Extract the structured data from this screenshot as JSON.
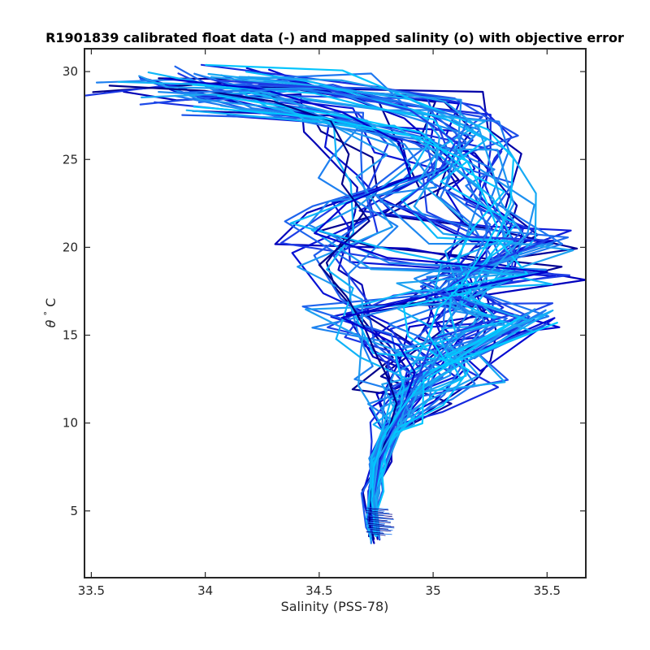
{
  "chart_data": {
    "type": "line",
    "title": "R1901839 calibrated float data (-) and mapped salinity (o) with objective error",
    "xlabel": "Salinity (PSS-78)",
    "ylabel_symbol": "θ",
    "ylabel_unit": "C",
    "xlim": [
      33.47,
      35.67
    ],
    "ylim": [
      1.2,
      31.3
    ],
    "xticks": [
      33.5,
      34,
      34.5,
      35,
      35.5
    ],
    "xtick_labels": [
      "33.5",
      "34",
      "34.5",
      "35",
      "35.5"
    ],
    "yticks": [
      5,
      10,
      15,
      20,
      25,
      30
    ],
    "ytick_labels": [
      "5",
      "10",
      "15",
      "20",
      "25",
      "30"
    ],
    "grid": false,
    "legend": "none",
    "colormap": [
      "#00008B",
      "#0000CD",
      "#1E3CE6",
      "#1E78F0",
      "#1EA0F0",
      "#00C8FF"
    ],
    "series": [
      {
        "color": "#00008B",
        "values": [
          [
            33.58,
            29.2
          ],
          [
            34.0,
            28.9
          ],
          [
            34.3,
            28.3
          ],
          [
            34.55,
            27.2
          ],
          [
            34.63,
            25.3
          ],
          [
            34.6,
            23.6
          ],
          [
            34.72,
            21.5
          ],
          [
            34.5,
            19.0
          ],
          [
            34.62,
            17.2
          ],
          [
            34.7,
            15.4
          ],
          [
            34.75,
            13.9
          ],
          [
            34.8,
            12.6
          ],
          [
            34.84,
            11.1
          ],
          [
            34.8,
            9.4
          ],
          [
            34.76,
            7.7
          ],
          [
            34.73,
            6.1
          ],
          [
            34.72,
            4.3
          ],
          [
            34.74,
            3.4
          ]
        ]
      },
      {
        "color": "#0000CD",
        "values": [
          [
            33.82,
            29.6
          ],
          [
            34.25,
            29.0
          ],
          [
            34.6,
            27.7
          ],
          [
            34.85,
            26.0
          ],
          [
            34.9,
            24.0
          ],
          [
            34.62,
            22.5
          ],
          [
            34.48,
            20.8
          ],
          [
            34.8,
            19.4
          ],
          [
            35.5,
            18.6
          ],
          [
            35.0,
            17.3
          ],
          [
            34.6,
            16.0
          ],
          [
            34.85,
            14.4
          ],
          [
            34.92,
            12.9
          ],
          [
            34.88,
            11.3
          ],
          [
            34.82,
            9.7
          ],
          [
            34.77,
            8.0
          ],
          [
            34.73,
            5.9
          ],
          [
            34.73,
            3.9
          ]
        ]
      },
      {
        "color": "#1E3CE6",
        "values": [
          [
            34.05,
            29.5
          ],
          [
            34.5,
            29.1
          ],
          [
            34.9,
            27.8
          ],
          [
            35.1,
            26.0
          ],
          [
            35.02,
            24.2
          ],
          [
            34.85,
            22.4
          ],
          [
            35.15,
            20.6
          ],
          [
            35.5,
            20.4
          ],
          [
            35.2,
            18.8
          ],
          [
            35.02,
            17.4
          ],
          [
            35.35,
            16.2
          ],
          [
            35.0,
            14.8
          ],
          [
            34.95,
            13.1
          ],
          [
            34.9,
            11.6
          ],
          [
            34.83,
            9.8
          ],
          [
            34.77,
            7.9
          ],
          [
            34.74,
            5.8
          ],
          [
            34.73,
            3.8
          ]
        ]
      },
      {
        "color": "#1E78F0",
        "values": [
          [
            33.88,
            28.8
          ],
          [
            34.4,
            29.0
          ],
          [
            34.85,
            28.3
          ],
          [
            35.15,
            27.3
          ],
          [
            35.1,
            25.5
          ],
          [
            35.05,
            23.3
          ],
          [
            35.25,
            21.3
          ],
          [
            35.18,
            19.2
          ],
          [
            35.05,
            17.6
          ],
          [
            35.15,
            16.2
          ],
          [
            35.08,
            14.8
          ],
          [
            35.0,
            13.3
          ],
          [
            34.9,
            11.7
          ],
          [
            34.82,
            9.8
          ],
          [
            34.75,
            8.2
          ],
          [
            34.74,
            6.0
          ],
          [
            34.75,
            3.8
          ]
        ]
      },
      {
        "color": "#1EA0F0",
        "values": [
          [
            34.15,
            29.7
          ],
          [
            34.6,
            29.5
          ],
          [
            35.05,
            28.3
          ],
          [
            35.2,
            26.8
          ],
          [
            35.25,
            24.8
          ],
          [
            35.3,
            22.5
          ],
          [
            35.4,
            20.6
          ],
          [
            35.25,
            18.6
          ],
          [
            35.15,
            17.0
          ],
          [
            35.42,
            15.8
          ],
          [
            35.1,
            14.2
          ],
          [
            35.2,
            12.7
          ],
          [
            34.95,
            11.1
          ],
          [
            34.83,
            9.6
          ],
          [
            34.76,
            8.0
          ],
          [
            34.74,
            6.2
          ],
          [
            34.74,
            4.0
          ]
        ]
      },
      {
        "color": "#00C8FF",
        "values": [
          [
            33.95,
            28.0
          ],
          [
            34.5,
            27.4
          ],
          [
            34.92,
            26.3
          ],
          [
            35.15,
            24.9
          ],
          [
            35.22,
            23.0
          ],
          [
            35.28,
            21.2
          ],
          [
            35.2,
            19.4
          ],
          [
            35.12,
            17.8
          ],
          [
            35.02,
            16.5
          ],
          [
            34.98,
            15.0
          ],
          [
            35.05,
            13.6
          ],
          [
            35.38,
            16.0
          ],
          [
            34.95,
            12.3
          ],
          [
            34.85,
            10.6
          ],
          [
            34.78,
            9.2
          ],
          [
            34.74,
            7.5
          ],
          [
            34.73,
            5.6
          ],
          [
            34.75,
            3.6
          ]
        ]
      }
    ]
  }
}
